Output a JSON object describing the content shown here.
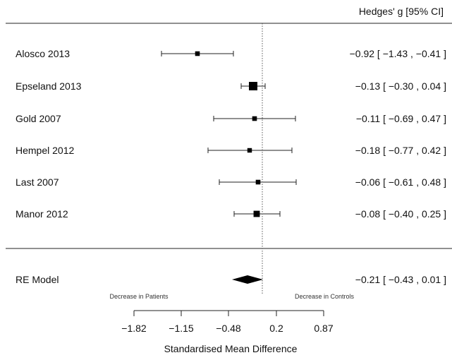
{
  "chart_data": {
    "type": "forest",
    "column_header": "Hedges' g [95% CI]",
    "xlabel": "Standardised Mean Difference",
    "x_ticks": [
      -1.82,
      -1.15,
      -0.48,
      0.2,
      0.87
    ],
    "x_tick_labels": [
      "−1.82",
      "−1.15",
      "−0.48",
      "0.2",
      "0.87"
    ],
    "xlim": [
      -2.15,
      2.05
    ],
    "reference_line": 0,
    "left_annotation": "Decrease in Patients",
    "right_annotation": "Decrease in Controls",
    "studies": [
      {
        "name": "Alosco 2013",
        "estimate": -0.92,
        "lower": -1.43,
        "upper": -0.41,
        "ci_text": "−0.92 [ −1.43 , −0.41 ]",
        "weight": 0.4
      },
      {
        "name": "Epseland 2013",
        "estimate": -0.13,
        "lower": -0.3,
        "upper": 0.04,
        "ci_text": "−0.13 [ −0.30 ,  0.04 ]",
        "weight": 1.0
      },
      {
        "name": "Gold 2007",
        "estimate": -0.11,
        "lower": -0.69,
        "upper": 0.47,
        "ci_text": "−0.11 [ −0.69 ,  0.47 ]",
        "weight": 0.4
      },
      {
        "name": "Hempel 2012",
        "estimate": -0.18,
        "lower": -0.77,
        "upper": 0.42,
        "ci_text": "−0.18 [ −0.77 ,  0.42 ]",
        "weight": 0.38
      },
      {
        "name": "Last 2007",
        "estimate": -0.06,
        "lower": -0.61,
        "upper": 0.48,
        "ci_text": "−0.06 [ −0.61 ,  0.48 ]",
        "weight": 0.4
      },
      {
        "name": "Manor 2012",
        "estimate": -0.08,
        "lower": -0.4,
        "upper": 0.25,
        "ci_text": "−0.08 [ −0.40 ,  0.25 ]",
        "weight": 0.65
      }
    ],
    "summary": {
      "name": "RE Model",
      "estimate": -0.21,
      "lower": -0.43,
      "upper": 0.01,
      "ci_text": "−0.21 [ −0.43 ,  0.01 ]"
    }
  }
}
